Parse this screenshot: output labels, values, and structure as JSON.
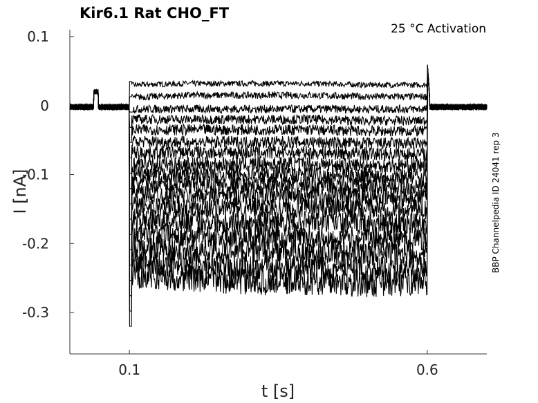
{
  "chart_data": {
    "type": "line",
    "title": "Kir6.1  Rat  CHO_FT",
    "annotation": "25 °C  Activation",
    "side_label": "BBP Channelpedia ID 24041 rep 3",
    "xlabel": "t [s]",
    "ylabel": "I [nA]",
    "xlim": [
      0.0,
      0.7
    ],
    "ylim": [
      -0.36,
      0.11
    ],
    "x_ticks": [
      0.1,
      0.6
    ],
    "x_tick_labels": [
      "0.1",
      "0.6"
    ],
    "y_ticks": [
      0.1,
      0,
      -0.1,
      -0.2,
      -0.3
    ],
    "y_tick_labels": [
      "0.1",
      "0",
      "-0.1",
      "-0.2",
      "-0.3"
    ],
    "grid": false,
    "legend": "none",
    "step_start": 0.1,
    "step_end": 0.6,
    "pre_artifact": {
      "x_start": 0.04,
      "x_end": 0.048,
      "value": 0.02
    },
    "series_color": "#000000",
    "series": [
      {
        "values": [
          -0.002,
          0.03,
          0.032,
          0.032,
          0.032,
          0.03,
          0.03
        ]
      },
      {
        "values": [
          -0.002,
          0.012,
          0.015,
          0.015,
          0.015,
          0.013,
          0.013
        ]
      },
      {
        "values": [
          -0.002,
          -0.005,
          -0.005,
          -0.005,
          -0.005,
          -0.005,
          -0.005
        ]
      },
      {
        "values": [
          -0.002,
          -0.02,
          -0.02,
          -0.02,
          -0.02,
          -0.022,
          -0.022
        ]
      },
      {
        "values": [
          -0.002,
          -0.035,
          -0.035,
          -0.035,
          -0.035,
          -0.037,
          -0.037
        ]
      },
      {
        "values": [
          -0.002,
          -0.052,
          -0.053,
          -0.053,
          -0.053,
          -0.055,
          -0.055
        ]
      },
      {
        "values": [
          -0.002,
          -0.068,
          -0.068,
          -0.068,
          -0.068,
          -0.07,
          -0.07
        ]
      },
      {
        "values": [
          -0.002,
          -0.085,
          -0.085,
          -0.085,
          -0.085,
          -0.087,
          -0.087
        ]
      },
      {
        "values": [
          -0.002,
          -0.1,
          -0.1,
          -0.1,
          -0.1,
          -0.102,
          -0.102
        ]
      },
      {
        "values": [
          -0.002,
          -0.112,
          -0.115,
          -0.115,
          -0.115,
          -0.117,
          -0.117
        ]
      },
      {
        "values": [
          -0.002,
          -0.128,
          -0.13,
          -0.13,
          -0.13,
          -0.133,
          -0.133
        ]
      },
      {
        "values": [
          -0.002,
          -0.145,
          -0.148,
          -0.148,
          -0.148,
          -0.15,
          -0.15
        ]
      },
      {
        "values": [
          -0.002,
          -0.165,
          -0.168,
          -0.168,
          -0.168,
          -0.172,
          -0.172
        ]
      },
      {
        "values": [
          -0.002,
          -0.185,
          -0.188,
          -0.188,
          -0.19,
          -0.193,
          -0.193
        ]
      },
      {
        "values": [
          -0.002,
          -0.205,
          -0.21,
          -0.21,
          -0.212,
          -0.215,
          -0.215
        ]
      },
      {
        "values": [
          -0.002,
          -0.225,
          -0.232,
          -0.235,
          -0.235,
          -0.238,
          -0.238
        ]
      },
      {
        "values": [
          -0.002,
          -0.245,
          -0.25,
          -0.255,
          -0.255,
          -0.258,
          -0.255
        ]
      }
    ],
    "x": [
      0.09,
      0.105,
      0.2,
      0.3,
      0.4,
      0.5,
      0.595
    ]
  }
}
